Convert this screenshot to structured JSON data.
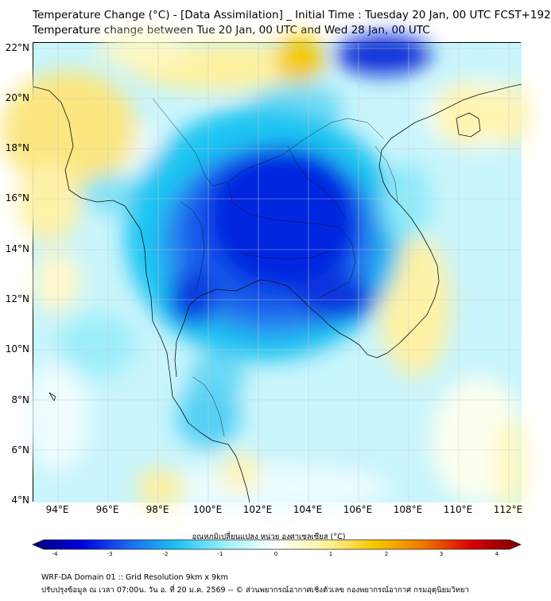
{
  "title_line1": "Temperature Change (°C) - [Data Assimilation] _ Initial Time : Tuesday 20 Jan, 00 UTC FCST+192",
  "title_line2": "Temperature change between Tue 20 Jan, 00 UTC and Wed 28 Jan, 00 UTC",
  "lat_labels": [
    "22°N",
    "20°N",
    "18°N",
    "16°N",
    "14°N",
    "12°N",
    "10°N",
    "8°N",
    "6°N",
    "4°N"
  ],
  "lon_labels": [
    "94°E",
    "96°E",
    "98°E",
    "100°E",
    "102°E",
    "104°E",
    "106°E",
    "108°E",
    "110°E",
    "112°E"
  ],
  "extent": {
    "lon_min": 93.0,
    "lon_max": 112.5,
    "lat_min": 4.0,
    "lat_max": 22.3
  },
  "colorbar": {
    "title": "อุณหภูมิเปลี่ยนแปลง หน่วย องศาเซลเซียส (°C)",
    "ticks": [
      "-4",
      "-3",
      "-2",
      "-1",
      "0",
      "1",
      "2",
      "3",
      "4"
    ],
    "min": -4,
    "max": 4,
    "colors": [
      "#00007a",
      "#0000dd",
      "#1a6cf0",
      "#1ec5f2",
      "#a6f2fa",
      "#ffffff",
      "#fff3a0",
      "#f5c800",
      "#f07800",
      "#d80000",
      "#7a0000"
    ]
  },
  "footer_line1": "WRF-DA Domain 01 :: Grid Resolution 9km x 9km",
  "footer_line2": "ปรับปรุงข้อมูล ณ เวลา 07:00น. วัน อ. ที่ 20 ม.ค. 2569 -- © ส่วนพยากรณ์อากาศเชิงตัวเลข กองพยากรณ์อากาศ กรมอุตุนิยมวิทยา"
}
